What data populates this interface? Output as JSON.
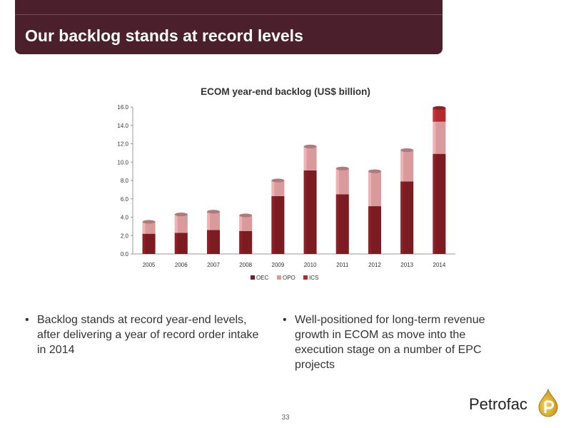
{
  "header": {
    "title": "Our backlog stands at record levels"
  },
  "chart_data": {
    "type": "bar",
    "stacked": true,
    "title": "ECOM year-end backlog (US$ billion)",
    "categories": [
      "2005",
      "2006",
      "2007",
      "2008",
      "2009",
      "2010",
      "2011",
      "2012",
      "2013",
      "2014"
    ],
    "series": [
      {
        "name": "OEC",
        "color": "#7b1c22",
        "values": [
          2.2,
          2.3,
          2.6,
          2.5,
          6.3,
          9.1,
          6.5,
          5.2,
          7.9,
          10.9
        ]
      },
      {
        "name": "OPO",
        "color": "#d99a9c",
        "values": [
          1.3,
          2.0,
          2.0,
          1.7,
          1.7,
          2.6,
          2.8,
          3.8,
          3.4,
          3.5
        ]
      },
      {
        "name": "ICS",
        "color": "#b02a2e",
        "values": [
          0,
          0,
          0,
          0,
          0,
          0,
          0,
          0,
          0,
          1.5
        ]
      }
    ],
    "y_ticks": [
      "0.0",
      "2.0",
      "4.0",
      "6.0",
      "8.0",
      "10.0",
      "12.0",
      "14.0",
      "16.0"
    ],
    "ylim": [
      0,
      16
    ],
    "grid": false,
    "legend_position": "bottom"
  },
  "bullets": {
    "left": "Backlog stands at record year-end levels, after delivering a year of record order intake in 2014",
    "right": "Well-positioned for long-term revenue growth in ECOM as move into the execution stage on a number of EPC projects",
    "marker": "•"
  },
  "footer": {
    "page_number": "33",
    "logo_text": "Petrofac",
    "logo_icon": "drop-p-icon"
  }
}
